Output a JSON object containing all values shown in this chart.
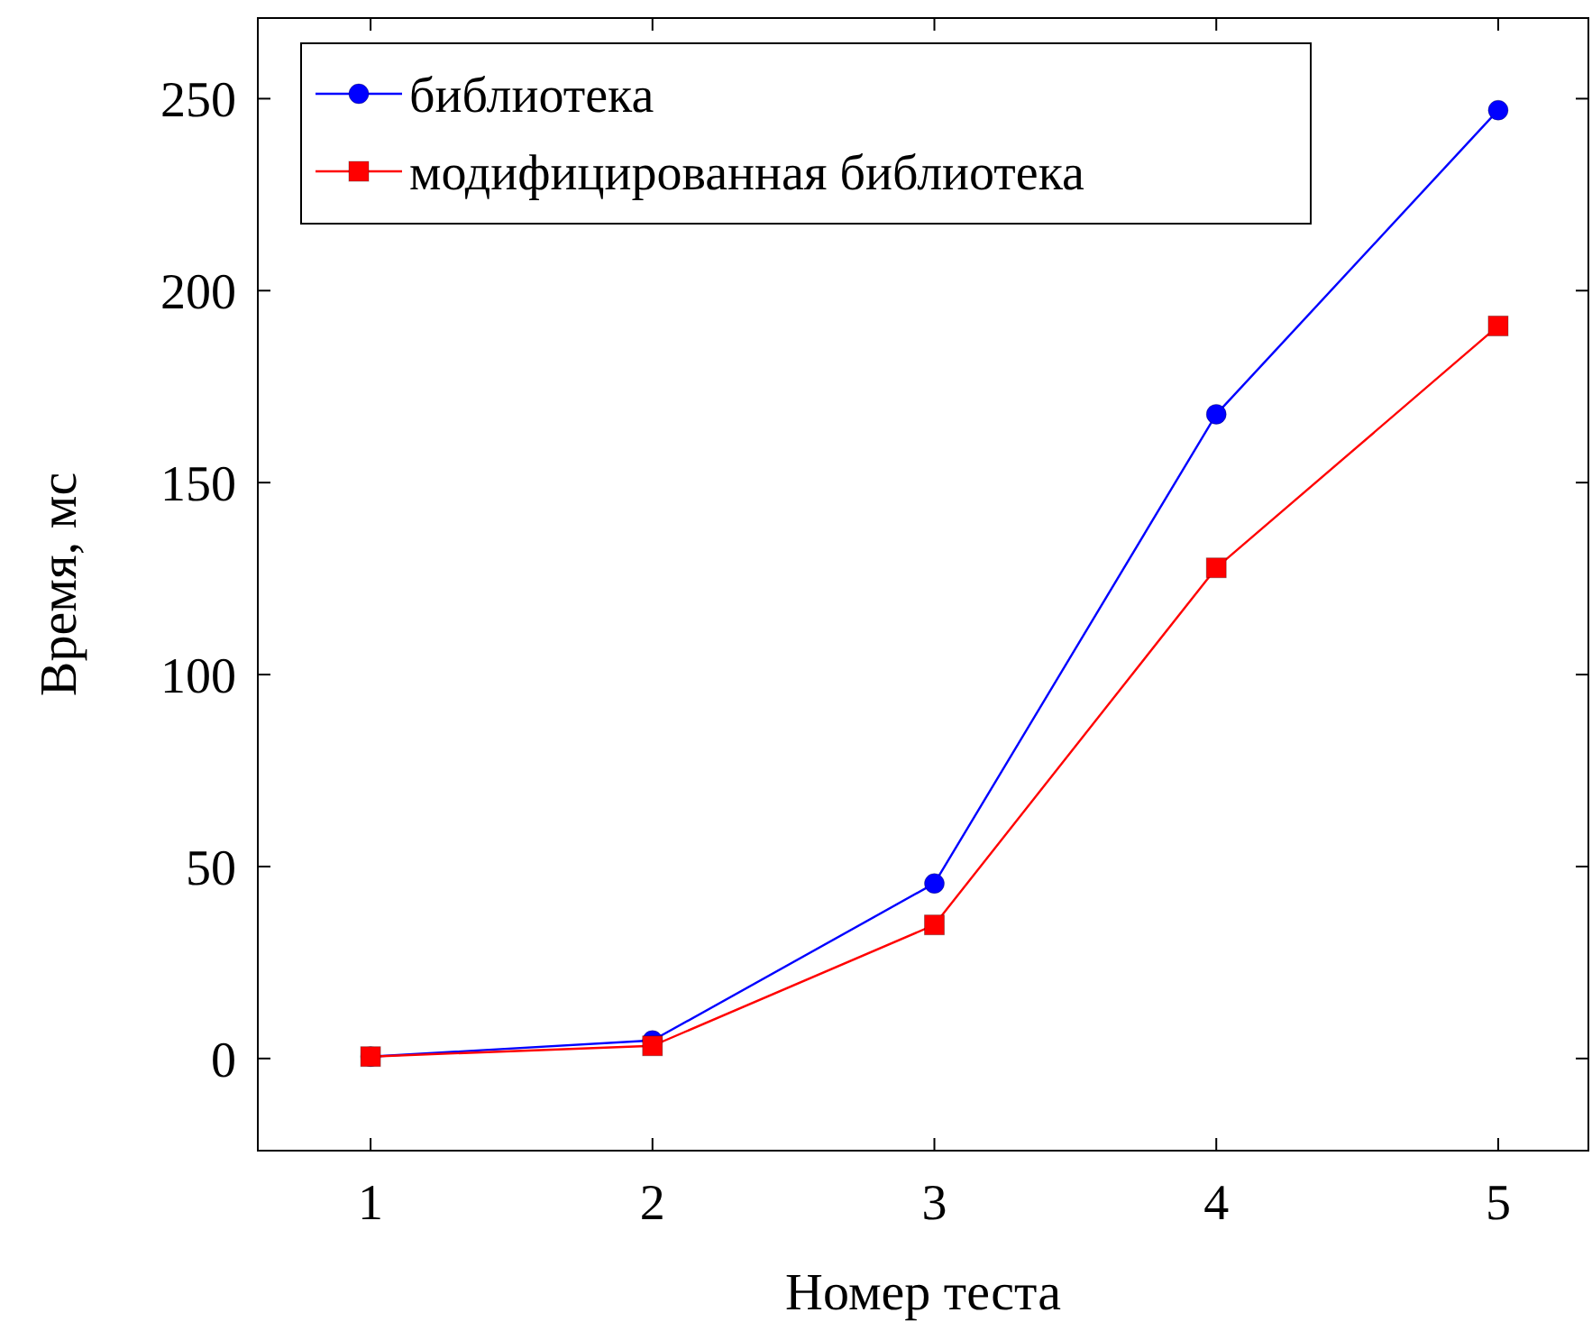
{
  "chart_data": {
    "type": "line",
    "xlabel": "Номер теста",
    "ylabel": "Время, мс",
    "x": [
      1,
      2,
      3,
      4,
      5
    ],
    "series": [
      {
        "name": "библиотека",
        "color": "#0000ff",
        "marker": "circle",
        "values": [
          0.5,
          4.7,
          45.6,
          167.8,
          247
        ]
      },
      {
        "name": "модифицированная библиотека",
        "color": "#ff0000",
        "marker": "square",
        "values": [
          0.5,
          3.3,
          34.8,
          127.8,
          190.8
        ]
      }
    ],
    "xlim": [
      0.6,
      5.32
    ],
    "ylim": [
      -24,
      271
    ],
    "xticks": [
      1,
      2,
      3,
      4,
      5
    ],
    "yticks": [
      0,
      50,
      100,
      150,
      200,
      250
    ],
    "legend": "top left",
    "grid": false
  }
}
